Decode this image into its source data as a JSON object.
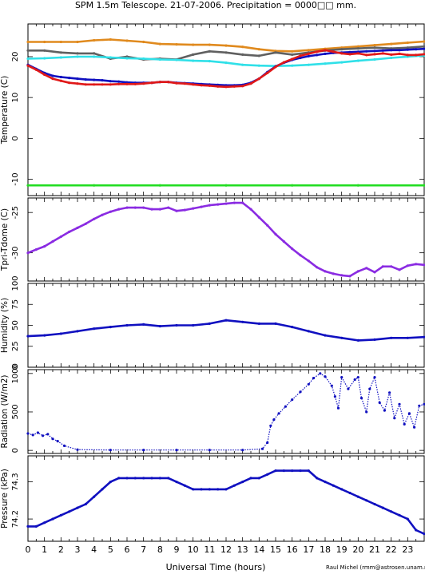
{
  "title": "SPM 1.5m Telescope. 21-07-2006. Precipitation = 0000□□ mm.",
  "xlabel": "Universal Time (hours)",
  "credit": "Raul Michel (rmm@astrosen.unam.mx)",
  "x_ticks": [
    "0",
    "1",
    "2",
    "3",
    "4",
    "5",
    "6",
    "7",
    "8",
    "9",
    "10",
    "11",
    "12",
    "13",
    "14",
    "15",
    "16",
    "17",
    "18",
    "19",
    "20",
    "21",
    "22",
    "23"
  ],
  "chart_data": [
    {
      "type": "scatter",
      "ylabel": "Temperature (C)",
      "xlim": [
        0,
        24
      ],
      "ylim": [
        -14,
        28
      ],
      "yticks": [
        -10,
        0,
        10,
        20
      ],
      "ytick_labels": [
        "-10",
        "0",
        "10",
        "20"
      ],
      "series": [
        {
          "color": "#e08a1e",
          "x": [
            0,
            1,
            2,
            3,
            4,
            5,
            6,
            7,
            8,
            9,
            10,
            11,
            12,
            13,
            14,
            15,
            16,
            17,
            18,
            19,
            20,
            21,
            22,
            23,
            24
          ],
          "y": [
            23.6,
            23.6,
            23.6,
            23.6,
            24,
            24.2,
            23.9,
            23.6,
            23.1,
            23,
            22.9,
            22.9,
            22.7,
            22.4,
            21.8,
            21.4,
            21.3,
            21.6,
            21.9,
            22.2,
            22.5,
            22.8,
            23.1,
            23.4,
            23.7
          ]
        },
        {
          "color": "#606060",
          "x": [
            0,
            1,
            2,
            3,
            4,
            5,
            6,
            7,
            8,
            9,
            10,
            11,
            12,
            13,
            14,
            15,
            16,
            17,
            18,
            19,
            20,
            21,
            22,
            23,
            24
          ],
          "y": [
            21.5,
            21.5,
            21,
            20.8,
            20.8,
            19.5,
            20,
            19.3,
            19.5,
            19.3,
            20.5,
            21.3,
            21,
            20.5,
            20.2,
            21,
            20.5,
            21,
            21.5,
            21.8,
            22,
            22.2,
            22,
            22.2,
            22.5
          ]
        },
        {
          "color": "#30e0e8",
          "x": [
            0,
            1,
            2,
            3,
            4,
            5,
            6,
            7,
            8,
            9,
            10,
            11,
            12,
            13,
            14,
            15,
            16,
            17,
            18,
            19,
            20,
            21,
            22,
            23,
            24
          ],
          "y": [
            19.5,
            19.6,
            19.8,
            20,
            20,
            19.8,
            19.6,
            19.5,
            19.3,
            19.2,
            19,
            18.9,
            18.5,
            18,
            17.8,
            17.7,
            17.8,
            18,
            18.3,
            18.6,
            19,
            19.3,
            19.7,
            20,
            20.3
          ]
        },
        {
          "color": "#1010c0",
          "x": [
            0,
            0.5,
            1,
            1.5,
            2,
            2.5,
            3,
            3.5,
            4,
            4.5,
            5,
            5.5,
            6,
            6.5,
            7,
            7.5,
            8,
            8.5,
            9,
            9.5,
            10,
            10.5,
            11,
            11.5,
            12,
            12.5,
            13,
            13.5,
            14,
            14.5,
            15,
            15.5,
            16,
            16.5,
            17,
            17.5,
            18,
            18.5,
            19,
            19.5,
            20,
            20.5,
            21,
            21.5,
            22,
            22.5,
            23,
            23.5,
            24
          ],
          "y": [
            18,
            17,
            16,
            15.3,
            15,
            14.8,
            14.6,
            14.4,
            14.3,
            14.2,
            14,
            13.9,
            13.7,
            13.6,
            13.6,
            13.6,
            13.8,
            13.8,
            13.6,
            13.5,
            13.4,
            13.3,
            13.2,
            13.1,
            13,
            13,
            13.1,
            13.6,
            14.6,
            16.2,
            17.6,
            18.5,
            19.2,
            19.7,
            20.1,
            20.4,
            20.7,
            20.9,
            21,
            21.1,
            21.2,
            21.3,
            21.4,
            21.5,
            21.6,
            21.6,
            21.7,
            21.8,
            21.9
          ]
        },
        {
          "color": "#e01818",
          "x": [
            0,
            0.5,
            1,
            1.5,
            2,
            2.5,
            3,
            3.5,
            4,
            4.5,
            5,
            5.5,
            6,
            6.5,
            7,
            7.5,
            8,
            8.5,
            9,
            9.5,
            10,
            10.5,
            11,
            11.5,
            12,
            12.5,
            13,
            13.5,
            14,
            14.5,
            15,
            15.5,
            16,
            16.5,
            17,
            17.5,
            18,
            18.5,
            19,
            19.5,
            20,
            20.5,
            21,
            21.5,
            22,
            22.5,
            23,
            23.5,
            24
          ],
          "y": [
            17.8,
            16.8,
            15.6,
            14.6,
            14.1,
            13.6,
            13.4,
            13.2,
            13.2,
            13.2,
            13.2,
            13.3,
            13.3,
            13.3,
            13.4,
            13.6,
            13.8,
            13.8,
            13.5,
            13.4,
            13.2,
            13,
            12.9,
            12.7,
            12.6,
            12.7,
            12.8,
            13.4,
            14.6,
            16,
            17.5,
            18.6,
            19.4,
            20.2,
            20.7,
            21.2,
            21.6,
            21.2,
            20.8,
            20.6,
            20.8,
            20.4,
            20.6,
            20.8,
            20.5,
            20.7,
            20.4,
            20.4,
            20.6
          ]
        },
        {
          "color": "#22dd22",
          "x": [
            0,
            4,
            8,
            12,
            16,
            20,
            24
          ],
          "y": [
            -11.5,
            -11.5,
            -11.5,
            -11.5,
            -11.5,
            -11.5,
            -11.5
          ]
        }
      ]
    },
    {
      "type": "scatter",
      "ylabel": "Tpri-Tdome (C)",
      "xlim": [
        0,
        24
      ],
      "ylim": [
        -33.5,
        -23.2
      ],
      "yticks": [
        -30,
        -25
      ],
      "ytick_labels": [
        "-30",
        "-25"
      ],
      "series": [
        {
          "color": "#8a2be2",
          "x": [
            0,
            0.5,
            1,
            1.5,
            2,
            2.5,
            3,
            3.5,
            4,
            4.5,
            5,
            5.5,
            6,
            6.5,
            7,
            7.5,
            8,
            8.5,
            9,
            9.5,
            10,
            10.5,
            11,
            11.5,
            12,
            12.5,
            13,
            13.5,
            14,
            14.5,
            15,
            15.5,
            16,
            16.5,
            17,
            17.5,
            18,
            18.5,
            19,
            19.5,
            20,
            20.5,
            21,
            21.5,
            22,
            22.5,
            23,
            23.5,
            24
          ],
          "y": [
            -30,
            -29.6,
            -29.2,
            -28.6,
            -28,
            -27.4,
            -26.9,
            -26.4,
            -25.8,
            -25.3,
            -24.9,
            -24.6,
            -24.4,
            -24.4,
            -24.4,
            -24.6,
            -24.6,
            -24.4,
            -24.8,
            -24.7,
            -24.5,
            -24.3,
            -24.1,
            -24,
            -23.9,
            -23.8,
            -23.8,
            -24.6,
            -25.6,
            -26.6,
            -27.7,
            -28.6,
            -29.5,
            -30.3,
            -31,
            -31.8,
            -32.3,
            -32.6,
            -32.8,
            -32.9,
            -32.3,
            -31.9,
            -32.4,
            -31.7,
            -31.7,
            -32.1,
            -31.6,
            -31.4,
            -31.5
          ]
        }
      ]
    },
    {
      "type": "scatter",
      "ylabel": "Humidity (%)",
      "xlim": [
        0,
        24
      ],
      "ylim": [
        0,
        100
      ],
      "yticks": [
        0,
        25,
        50,
        75,
        100
      ],
      "ytick_labels": [
        "0",
        "25",
        "50",
        "75",
        "100"
      ],
      "series": [
        {
          "color": "#1010c0",
          "x": [
            0,
            1,
            2,
            3,
            4,
            5,
            6,
            7,
            8,
            9,
            10,
            11,
            12,
            13,
            14,
            15,
            16,
            17,
            18,
            19,
            20,
            21,
            22,
            23,
            24
          ],
          "y": [
            37,
            38,
            40,
            43,
            46,
            48,
            50,
            51,
            49,
            50,
            50,
            52,
            56,
            54,
            52,
            52,
            48,
            43,
            38,
            35,
            32,
            33,
            35,
            35,
            36
          ]
        }
      ]
    },
    {
      "type": "scatter",
      "ylabel": "Radiation (W/m2)",
      "xlim": [
        0,
        24
      ],
      "ylim": [
        -40,
        1050
      ],
      "yticks": [
        0,
        500,
        1000
      ],
      "ytick_labels": [
        "0",
        "500",
        "1000"
      ],
      "series": [
        {
          "color": "#1010c0",
          "x": [
            0,
            0.3,
            0.6,
            0.9,
            1.2,
            1.5,
            1.8,
            2.2,
            3,
            5,
            7,
            9,
            11,
            13,
            14.2,
            14.5,
            14.7,
            14.9,
            15.2,
            15.6,
            16,
            16.5,
            17,
            17.3,
            17.7,
            18,
            18.4,
            18.6,
            18.8,
            19,
            19.4,
            19.8,
            20,
            20.2,
            20.5,
            20.7,
            21,
            21.3,
            21.6,
            21.9,
            22.2,
            22.5,
            22.8,
            23.1,
            23.4,
            23.7,
            24
          ],
          "y": [
            220,
            200,
            230,
            190,
            210,
            150,
            120,
            60,
            10,
            5,
            5,
            5,
            5,
            5,
            20,
            100,
            320,
            400,
            480,
            570,
            660,
            760,
            860,
            940,
            1000,
            960,
            840,
            700,
            550,
            950,
            800,
            920,
            950,
            680,
            500,
            800,
            950,
            620,
            520,
            750,
            420,
            600,
            340,
            480,
            300,
            580,
            600
          ]
        }
      ]
    },
    {
      "type": "scatter",
      "ylabel": "Pressure (kPa)",
      "xlim": [
        0,
        24
      ],
      "ylim": [
        74.14,
        74.37
      ],
      "yticks": [
        74.2,
        74.3
      ],
      "ytick_labels": [
        "74.2",
        "74.3"
      ],
      "series": [
        {
          "color": "#1010c0",
          "x": [
            0,
            0.5,
            1,
            1.5,
            2,
            2.5,
            3,
            3.5,
            4,
            4.5,
            5,
            5.5,
            6,
            6.5,
            7,
            7.5,
            8,
            8.5,
            9,
            9.5,
            10,
            10.5,
            11,
            11.5,
            12,
            12.5,
            13,
            13.5,
            14,
            14.5,
            15,
            15.5,
            16,
            16.5,
            17,
            17.5,
            18,
            18.5,
            19,
            19.5,
            20,
            20.5,
            21,
            21.5,
            22,
            22.5,
            23,
            23.5,
            24
          ],
          "y": [
            74.18,
            74.18,
            74.19,
            74.2,
            74.21,
            74.22,
            74.23,
            74.24,
            74.26,
            74.28,
            74.3,
            74.31,
            74.31,
            74.31,
            74.31,
            74.31,
            74.31,
            74.31,
            74.3,
            74.29,
            74.28,
            74.28,
            74.28,
            74.28,
            74.28,
            74.29,
            74.3,
            74.31,
            74.31,
            74.32,
            74.33,
            74.33,
            74.33,
            74.33,
            74.33,
            74.31,
            74.3,
            74.29,
            74.28,
            74.27,
            74.26,
            74.25,
            74.24,
            74.23,
            74.22,
            74.21,
            74.2,
            74.17,
            74.16
          ]
        }
      ]
    }
  ]
}
